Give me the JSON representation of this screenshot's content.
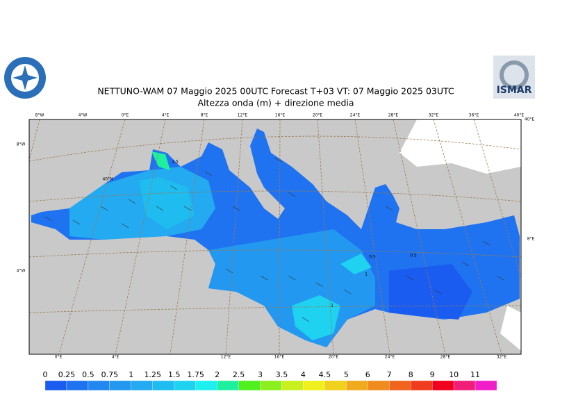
{
  "header": {
    "title": "NETTUNO-WAM  07   Maggio  2025 00UTC Forecast T+03 VT: 07   Maggio  2025 03UTC",
    "subtitle": "Altezza onda (m) + direzione media"
  },
  "map": {
    "top_labels": [
      "8°W",
      "4°W",
      "0°E",
      "4°E",
      "8°E",
      "12°E",
      "16°E",
      "20°E",
      "24°E",
      "28°E",
      "32°E",
      "36°E",
      "40°E"
    ],
    "bottom_labels": [
      "0°E",
      "4°E",
      "12°E",
      "16°E",
      "20°E",
      "24°E",
      "28°E",
      "32°E"
    ],
    "left_labels": [
      "8°W",
      "40°N",
      "4°W"
    ],
    "right_labels": [
      "40°E",
      "8°E"
    ],
    "contour_labels": [
      "1.5",
      "0.5",
      "1",
      "1",
      "0.5"
    ]
  },
  "logo": {
    "text": "ISMAR"
  },
  "colorbar": {
    "levels": [
      0,
      0.25,
      0.5,
      0.75,
      1,
      1.25,
      1.5,
      1.75,
      2,
      2.5,
      3,
      3.5,
      4,
      4.5,
      5,
      6,
      7,
      8,
      9,
      10,
      11
    ],
    "colors": [
      "#1b5cf0",
      "#1f73f0",
      "#2387f0",
      "#2398f0",
      "#23aaf0",
      "#1fbcf0",
      "#1ed2f0",
      "#1ef0f0",
      "#1ef0a0",
      "#50f01e",
      "#8cf01e",
      "#c8f01e",
      "#f0f01e",
      "#f0d21e",
      "#f0aa1e",
      "#f08c1e",
      "#f0641e",
      "#f03c1e",
      "#f0001e",
      "#f01e78",
      "#f01ec8"
    ]
  }
}
